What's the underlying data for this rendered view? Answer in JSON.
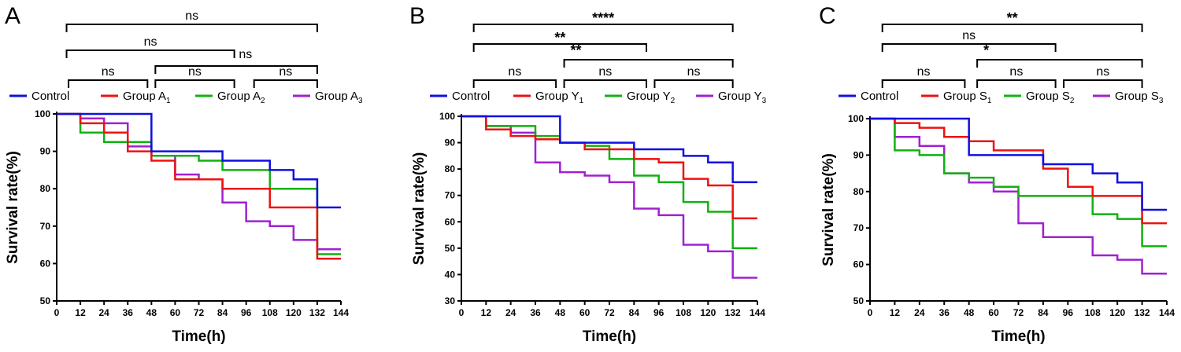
{
  "colors": {
    "control": "#1010e0",
    "group1": "#ee1111",
    "group2": "#11b111",
    "group3": "#a020d0"
  },
  "chart_data": [
    {
      "type": "line",
      "panel": "A",
      "xlabel": "Time(h)",
      "ylabel": "Survival rate(%)",
      "xlim": [
        0,
        144
      ],
      "ylim": [
        50,
        100
      ],
      "xticks": [
        0,
        12,
        24,
        36,
        48,
        60,
        72,
        84,
        96,
        108,
        120,
        132,
        144
      ],
      "yticks": [
        50,
        60,
        70,
        80,
        90,
        100
      ],
      "legend_position": "top",
      "legend": [
        {
          "label": "Control",
          "sub": ""
        },
        {
          "label": "Group A",
          "sub": "1"
        },
        {
          "label": "Group A",
          "sub": "2"
        },
        {
          "label": "Group A",
          "sub": "3"
        }
      ],
      "series": [
        {
          "x": [
            0,
            48,
            84,
            108,
            120,
            132,
            144
          ],
          "y": [
            100,
            90,
            87.5,
            85,
            82.5,
            75,
            75
          ]
        },
        {
          "x": [
            0,
            12,
            24,
            36,
            48,
            60,
            84,
            108,
            132,
            144
          ],
          "y": [
            100,
            97.5,
            95,
            90,
            87.5,
            82.5,
            80,
            75,
            61.3,
            61.3
          ]
        },
        {
          "x": [
            0,
            12,
            24,
            48,
            72,
            84,
            108,
            132,
            144
          ],
          "y": [
            100,
            95,
            92.5,
            88.8,
            87.5,
            85,
            80,
            62.5,
            62.5
          ]
        },
        {
          "x": [
            0,
            12,
            24,
            36,
            48,
            60,
            72,
            84,
            96,
            108,
            120,
            132,
            144
          ],
          "y": [
            100,
            98.8,
            97.5,
            91.3,
            88.8,
            83.8,
            82.5,
            76.3,
            71.3,
            70,
            66.3,
            63.8,
            63.8
          ]
        }
      ],
      "comparisons": [
        {
          "label": "ns",
          "from": 5,
          "to": 132,
          "level": 0
        },
        {
          "label": "ns",
          "from": 5,
          "to": 90,
          "level": 1
        },
        {
          "label": "ns",
          "from": 6,
          "to": 46,
          "level": 2
        },
        {
          "label": "ns",
          "from": 50,
          "to": 90,
          "level": 2
        },
        {
          "label": "ns",
          "from": 100,
          "to": 132,
          "level": 2
        },
        {
          "label": "ns",
          "from": 50,
          "to": 132,
          "level": 1.6
        }
      ]
    },
    {
      "type": "line",
      "panel": "B",
      "xlabel": "Time(h)",
      "ylabel": "Survival rate(%)",
      "xlim": [
        0,
        144
      ],
      "ylim": [
        30,
        100
      ],
      "xticks": [
        0,
        12,
        24,
        36,
        48,
        60,
        72,
        84,
        96,
        108,
        120,
        132,
        144
      ],
      "yticks": [
        30,
        40,
        50,
        60,
        70,
        80,
        90,
        100
      ],
      "legend_position": "top",
      "legend": [
        {
          "label": "Control",
          "sub": ""
        },
        {
          "label": "Group Y",
          "sub": "1"
        },
        {
          "label": "Group Y",
          "sub": "2"
        },
        {
          "label": "Group Y",
          "sub": "3"
        }
      ],
      "series": [
        {
          "x": [
            0,
            48,
            84,
            108,
            120,
            132,
            144
          ],
          "y": [
            100,
            90,
            87.5,
            85,
            82.5,
            75,
            75
          ]
        },
        {
          "x": [
            0,
            12,
            24,
            36,
            48,
            60,
            84,
            96,
            108,
            120,
            132,
            144
          ],
          "y": [
            100,
            95,
            92.5,
            91.3,
            90,
            87.5,
            83.8,
            82.5,
            76.3,
            73.8,
            61.3,
            61.3
          ]
        },
        {
          "x": [
            0,
            12,
            36,
            48,
            60,
            72,
            84,
            96,
            108,
            120,
            132,
            144
          ],
          "y": [
            100,
            96.3,
            92.5,
            90,
            88.8,
            83.8,
            77.5,
            75,
            67.5,
            63.8,
            50,
            50
          ]
        },
        {
          "x": [
            0,
            12,
            24,
            36,
            48,
            60,
            72,
            84,
            96,
            108,
            120,
            132,
            144
          ],
          "y": [
            100,
            96.3,
            93.8,
            82.5,
            78.8,
            77.5,
            75,
            65,
            62.5,
            51.3,
            48.8,
            38.8,
            38.8
          ]
        }
      ],
      "comparisons": [
        {
          "label": "****",
          "from": 6,
          "to": 132,
          "level": 0
        },
        {
          "label": "**",
          "from": 6,
          "to": 90,
          "level": 1
        },
        {
          "label": "ns",
          "from": 6,
          "to": 46,
          "level": 2
        },
        {
          "label": "ns",
          "from": 50,
          "to": 90,
          "level": 2
        },
        {
          "label": "ns",
          "from": 94,
          "to": 132,
          "level": 2
        },
        {
          "label": "**",
          "from": 50,
          "to": 132,
          "level": 1.6
        }
      ]
    },
    {
      "type": "line",
      "panel": "C",
      "xlabel": "Time(h)",
      "ylabel": "Survival rate(%)",
      "xlim": [
        0,
        144
      ],
      "ylim": [
        50,
        100
      ],
      "xticks": [
        0,
        12,
        24,
        36,
        48,
        60,
        72,
        84,
        96,
        108,
        120,
        132,
        144
      ],
      "yticks": [
        50,
        60,
        70,
        80,
        90,
        100
      ],
      "legend_position": "top",
      "legend": [
        {
          "label": "Control",
          "sub": ""
        },
        {
          "label": "Group S",
          "sub": "1"
        },
        {
          "label": "Group S",
          "sub": "2"
        },
        {
          "label": "Group S",
          "sub": "3"
        }
      ],
      "series": [
        {
          "x": [
            0,
            48,
            84,
            108,
            120,
            132,
            144
          ],
          "y": [
            100,
            90,
            87.5,
            85,
            82.5,
            75,
            75
          ]
        },
        {
          "x": [
            0,
            12,
            24,
            36,
            48,
            60,
            84,
            96,
            108,
            132,
            144
          ],
          "y": [
            100,
            98.8,
            97.5,
            95,
            93.8,
            91.3,
            86.3,
            81.3,
            78.8,
            71.3,
            71.3
          ]
        },
        {
          "x": [
            0,
            12,
            24,
            36,
            48,
            60,
            72,
            108,
            120,
            132,
            144
          ],
          "y": [
            100,
            91.3,
            90,
            85,
            83.8,
            81.3,
            78.8,
            73.8,
            72.5,
            65,
            65
          ]
        },
        {
          "x": [
            0,
            12,
            24,
            36,
            48,
            60,
            72,
            84,
            108,
            120,
            132,
            144
          ],
          "y": [
            100,
            95,
            92.5,
            85,
            82.5,
            80,
            71.3,
            67.5,
            62.5,
            61.3,
            57.5,
            57.5
          ]
        }
      ],
      "comparisons": [
        {
          "label": "**",
          "from": 6,
          "to": 132,
          "level": 0
        },
        {
          "label": "ns",
          "from": 6,
          "to": 90,
          "level": 1
        },
        {
          "label": "ns",
          "from": 6,
          "to": 46,
          "level": 2
        },
        {
          "label": "ns",
          "from": 52,
          "to": 90,
          "level": 2
        },
        {
          "label": "ns",
          "from": 94,
          "to": 132,
          "level": 2
        },
        {
          "label": "*",
          "from": 52,
          "to": 132,
          "level": 1.6
        }
      ]
    }
  ]
}
